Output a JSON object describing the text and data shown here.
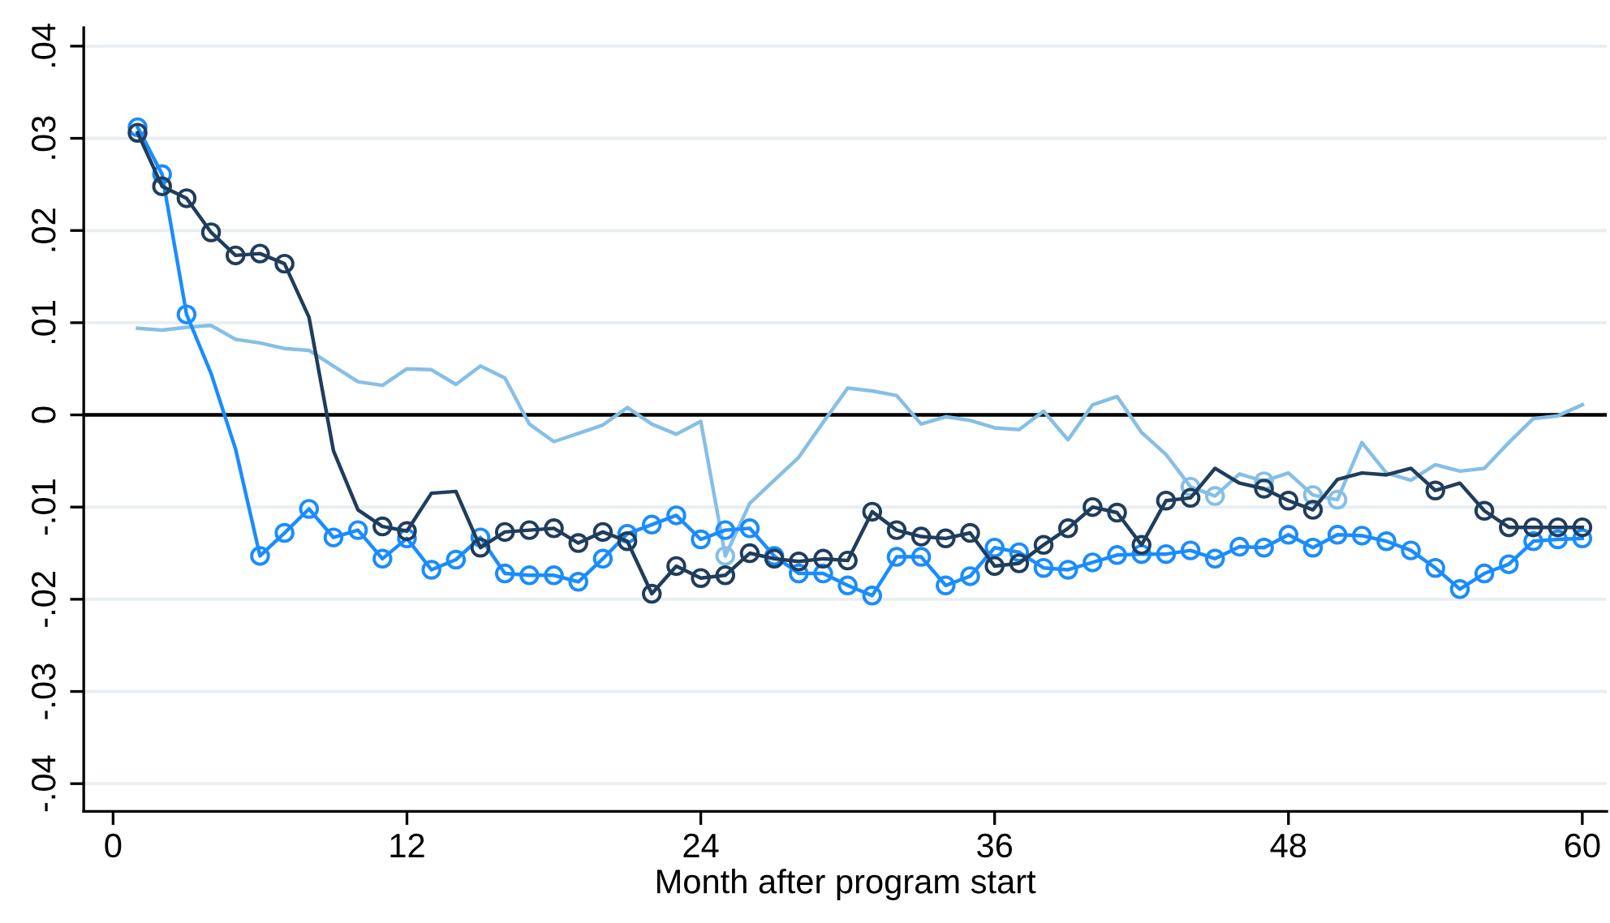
{
  "chart_data": {
    "type": "line",
    "xlabel": "Month after program start",
    "xlim": [
      -1.2,
      61
    ],
    "xticks": [
      0,
      12,
      24,
      36,
      48,
      60
    ],
    "ylim": [
      -0.043,
      0.042
    ],
    "yticks": [
      {
        "value": -0.04,
        "label": "-.04"
      },
      {
        "value": -0.03,
        "label": "-.03"
      },
      {
        "value": -0.02,
        "label": "-.02"
      },
      {
        "value": -0.01,
        "label": "-.01"
      },
      {
        "value": 0,
        "label": "0"
      },
      {
        "value": 0.01,
        "label": ".01"
      },
      {
        "value": 0.02,
        "label": ".02"
      },
      {
        "value": 0.03,
        "label": ".03"
      },
      {
        "value": 0.04,
        "label": ".04"
      }
    ],
    "grid": "y",
    "legend": false,
    "ref_lines": [
      {
        "axis": "y",
        "value": 0,
        "color": "#000000"
      }
    ],
    "series": [
      {
        "color": "#85bfe6",
        "marker": "none",
        "x": [
          1,
          2,
          3,
          4,
          5,
          6,
          7,
          8,
          9,
          10,
          11,
          12,
          13,
          14,
          15,
          16,
          17,
          18,
          19,
          20,
          21,
          22,
          23,
          24,
          25,
          26,
          27,
          28,
          29,
          30,
          31,
          32,
          33,
          34,
          35,
          36,
          37,
          38,
          39,
          40,
          41,
          42,
          43,
          44,
          45,
          46,
          47,
          48,
          49,
          50,
          51,
          52,
          53,
          54,
          55,
          56,
          57,
          58,
          59,
          60
        ],
        "values": [
          0.0094,
          0.0092,
          0.0095,
          0.0097,
          0.0082,
          0.0078,
          0.0072,
          0.007,
          0.0053,
          0.0036,
          0.0032,
          0.005,
          0.0049,
          0.0033,
          0.0053,
          0.004,
          -0.001,
          -0.0029,
          -0.002,
          -0.0011,
          0.0008,
          -0.001,
          -0.0021,
          -0.0007,
          -0.0153,
          -0.0096,
          -0.0071,
          -0.0046,
          -0.0008,
          0.0029,
          0.0026,
          0.0021,
          -0.001,
          -0.0002,
          -0.0006,
          -0.0014,
          -0.0016,
          0.0004,
          -0.0027,
          0.0011,
          0.002,
          -0.0019,
          -0.0043,
          -0.0078,
          -0.0088,
          -0.0064,
          -0.0072,
          -0.0063,
          -0.0087,
          -0.0092,
          -0.003,
          -0.0063,
          -0.0071,
          -0.0054,
          -0.0061,
          -0.0058,
          -0.003,
          -0.0004,
          -0.0001,
          0.0011
        ]
      },
      {
        "type": "scatter",
        "color": "#85bfe6",
        "marker": "circle",
        "x": [
          25,
          44,
          45,
          47,
          49,
          50
        ],
        "values": [
          -0.0153,
          -0.0078,
          -0.0088,
          -0.0072,
          -0.0087,
          -0.0092
        ]
      },
      {
        "color": "#1a8cff",
        "marker": "none",
        "x": [
          1,
          2,
          3,
          4,
          5,
          6,
          7,
          8,
          9,
          10,
          11,
          12,
          13,
          14,
          15,
          16,
          17,
          18,
          19,
          20,
          21,
          22,
          23,
          24,
          25,
          26,
          27,
          28,
          29,
          30,
          31,
          32,
          33,
          34,
          35,
          36,
          37,
          38,
          39,
          40,
          41,
          42,
          43,
          44,
          45,
          46,
          47,
          48,
          49,
          50,
          51,
          52,
          53,
          54,
          55,
          56,
          57,
          58,
          59,
          60
        ],
        "values": [
          0.0312,
          0.0261,
          0.0109,
          0.0045,
          -0.0037,
          -0.0153,
          -0.0128,
          -0.0102,
          -0.0133,
          -0.0125,
          -0.0156,
          -0.0134,
          -0.0168,
          -0.0157,
          -0.0133,
          -0.0172,
          -0.0174,
          -0.0174,
          -0.0181,
          -0.0156,
          -0.0129,
          -0.0119,
          -0.0109,
          -0.0135,
          -0.0125,
          -0.0123,
          -0.0153,
          -0.0172,
          -0.0172,
          -0.0185,
          -0.0196,
          -0.0154,
          -0.0154,
          -0.0185,
          -0.0175,
          -0.0144,
          -0.0149,
          -0.0166,
          -0.0168,
          -0.016,
          -0.0152,
          -0.0151,
          -0.0151,
          -0.0147,
          -0.0156,
          -0.0143,
          -0.0144,
          -0.013,
          -0.0144,
          -0.013,
          -0.0131,
          -0.0137,
          -0.0147,
          -0.0166,
          -0.0189,
          -0.0172,
          -0.0162,
          -0.0137,
          -0.0135,
          -0.0134
        ]
      },
      {
        "type": "scatter",
        "color": "#1a8cff",
        "marker": "circle",
        "x": [
          1,
          2,
          3,
          6,
          7,
          8,
          9,
          10,
          11,
          12,
          13,
          14,
          15,
          16,
          17,
          18,
          19,
          20,
          21,
          22,
          23,
          24,
          25,
          26,
          27,
          28,
          29,
          30,
          31,
          32,
          33,
          34,
          35,
          36,
          37,
          38,
          39,
          40,
          41,
          42,
          43,
          44,
          45,
          46,
          47,
          48,
          49,
          50,
          51,
          52,
          53,
          54,
          55,
          56,
          57,
          58,
          59,
          60
        ],
        "values": [
          0.0312,
          0.0261,
          0.0109,
          -0.0153,
          -0.0128,
          -0.0102,
          -0.0133,
          -0.0125,
          -0.0156,
          -0.0134,
          -0.0168,
          -0.0157,
          -0.0133,
          -0.0172,
          -0.0174,
          -0.0174,
          -0.0181,
          -0.0156,
          -0.0129,
          -0.0119,
          -0.0109,
          -0.0135,
          -0.0125,
          -0.0123,
          -0.0153,
          -0.0172,
          -0.0172,
          -0.0185,
          -0.0196,
          -0.0154,
          -0.0154,
          -0.0185,
          -0.0175,
          -0.0144,
          -0.0149,
          -0.0166,
          -0.0168,
          -0.016,
          -0.0152,
          -0.0151,
          -0.0151,
          -0.0147,
          -0.0156,
          -0.0143,
          -0.0144,
          -0.013,
          -0.0144,
          -0.013,
          -0.0131,
          -0.0137,
          -0.0147,
          -0.0166,
          -0.0189,
          -0.0172,
          -0.0162,
          -0.0137,
          -0.0135,
          -0.0134
        ]
      },
      {
        "color": "#1f3d5c",
        "marker": "none",
        "x": [
          1,
          2,
          3,
          4,
          5,
          6,
          7,
          8,
          9,
          10,
          11,
          12,
          13,
          14,
          15,
          16,
          17,
          18,
          19,
          20,
          21,
          22,
          23,
          24,
          25,
          26,
          27,
          28,
          29,
          30,
          31,
          32,
          33,
          34,
          35,
          36,
          37,
          38,
          39,
          40,
          41,
          42,
          43,
          44,
          45,
          46,
          47,
          48,
          49,
          50,
          51,
          52,
          53,
          54,
          55,
          56,
          57,
          58,
          59,
          60
        ],
        "values": [
          0.0306,
          0.0248,
          0.0235,
          0.0198,
          0.0173,
          0.0175,
          0.0164,
          0.0106,
          -0.0039,
          -0.0103,
          -0.0121,
          -0.0126,
          -0.0085,
          -0.0083,
          -0.0144,
          -0.0127,
          -0.0125,
          -0.0123,
          -0.0139,
          -0.0127,
          -0.0137,
          -0.0194,
          -0.0164,
          -0.0177,
          -0.0174,
          -0.015,
          -0.0156,
          -0.0159,
          -0.0156,
          -0.0158,
          -0.0105,
          -0.0125,
          -0.0132,
          -0.0134,
          -0.0128,
          -0.0164,
          -0.0161,
          -0.0141,
          -0.0123,
          -0.01,
          -0.0106,
          -0.0141,
          -0.0093,
          -0.009,
          -0.0058,
          -0.0074,
          -0.008,
          -0.0093,
          -0.0103,
          -0.007,
          -0.0063,
          -0.0065,
          -0.0058,
          -0.0082,
          -0.0074,
          -0.0104,
          -0.0122,
          -0.0122,
          -0.0122,
          -0.0122
        ]
      },
      {
        "type": "scatter",
        "color": "#1f3d5c",
        "marker": "circle",
        "x": [
          1,
          2,
          3,
          4,
          5,
          6,
          7,
          11,
          12,
          15,
          16,
          17,
          18,
          19,
          20,
          21,
          22,
          23,
          24,
          25,
          26,
          27,
          28,
          29,
          30,
          31,
          32,
          33,
          34,
          35,
          36,
          37,
          38,
          39,
          40,
          41,
          42,
          43,
          44,
          47,
          48,
          49,
          54,
          56,
          57,
          58,
          59,
          60
        ],
        "values": [
          0.0306,
          0.0248,
          0.0235,
          0.0198,
          0.0173,
          0.0175,
          0.0164,
          -0.0121,
          -0.0126,
          -0.0144,
          -0.0127,
          -0.0125,
          -0.0123,
          -0.0139,
          -0.0127,
          -0.0137,
          -0.0194,
          -0.0164,
          -0.0177,
          -0.0174,
          -0.015,
          -0.0156,
          -0.0159,
          -0.0156,
          -0.0158,
          -0.0105,
          -0.0125,
          -0.0132,
          -0.0134,
          -0.0128,
          -0.0164,
          -0.0161,
          -0.0141,
          -0.0123,
          -0.01,
          -0.0106,
          -0.0141,
          -0.0093,
          -0.009,
          -0.008,
          -0.0093,
          -0.0103,
          -0.0082,
          -0.0104,
          -0.0122,
          -0.0122,
          -0.0122,
          -0.0122
        ]
      }
    ]
  }
}
